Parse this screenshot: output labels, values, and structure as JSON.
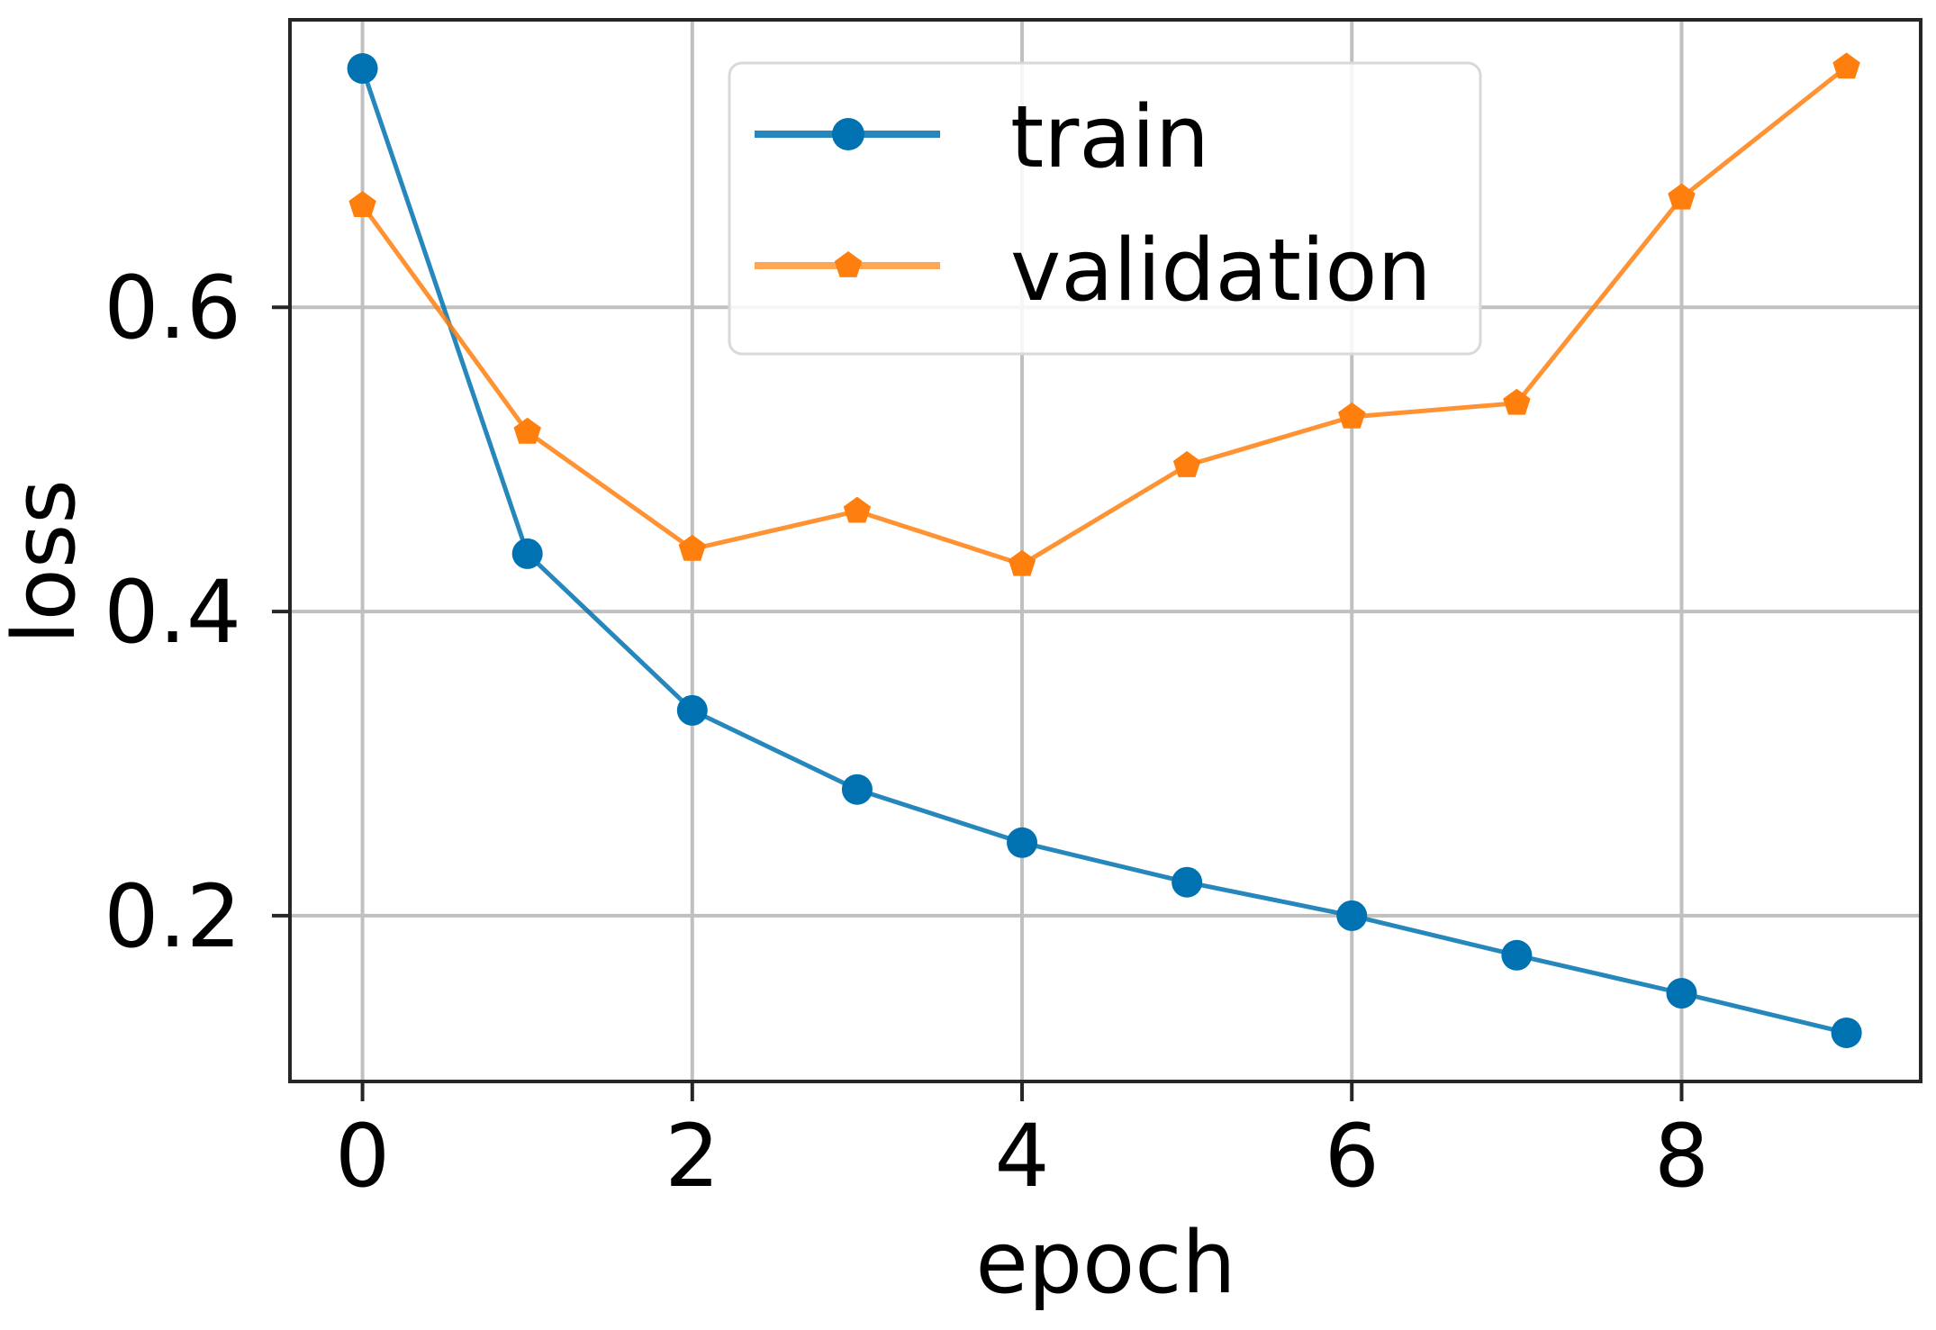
{
  "chart_data": {
    "type": "line",
    "title": "",
    "xlabel": "epoch",
    "ylabel": "loss",
    "x": [
      0,
      1,
      2,
      3,
      4,
      5,
      6,
      7,
      8,
      9
    ],
    "series": [
      {
        "name": "train",
        "color": "#0072b2",
        "marker": "circle",
        "values": [
          0.757,
          0.438,
          0.335,
          0.283,
          0.248,
          0.222,
          0.2,
          0.174,
          0.149,
          0.123
        ]
      },
      {
        "name": "validation",
        "color": "#ff7f0e",
        "marker": "pentagon",
        "values": [
          0.667,
          0.518,
          0.441,
          0.466,
          0.431,
          0.496,
          0.528,
          0.537,
          0.672,
          0.758
        ]
      }
    ],
    "xticks": [
      0,
      2,
      4,
      6,
      8
    ],
    "yticks": [
      0.2,
      0.4,
      0.6
    ],
    "xtick_labels": [
      "0",
      "2",
      "4",
      "6",
      "8"
    ],
    "ytick_labels": [
      "0.2",
      "0.4",
      "0.6"
    ],
    "xlim": [
      -0.44,
      9.45
    ],
    "ylim": [
      0.091,
      0.789
    ],
    "grid": true,
    "legend_position": "upper center"
  },
  "style": {
    "grid_color": "#c0c0c0",
    "axis_color": "#262626",
    "legend_border_color": "#d9d9d9"
  }
}
